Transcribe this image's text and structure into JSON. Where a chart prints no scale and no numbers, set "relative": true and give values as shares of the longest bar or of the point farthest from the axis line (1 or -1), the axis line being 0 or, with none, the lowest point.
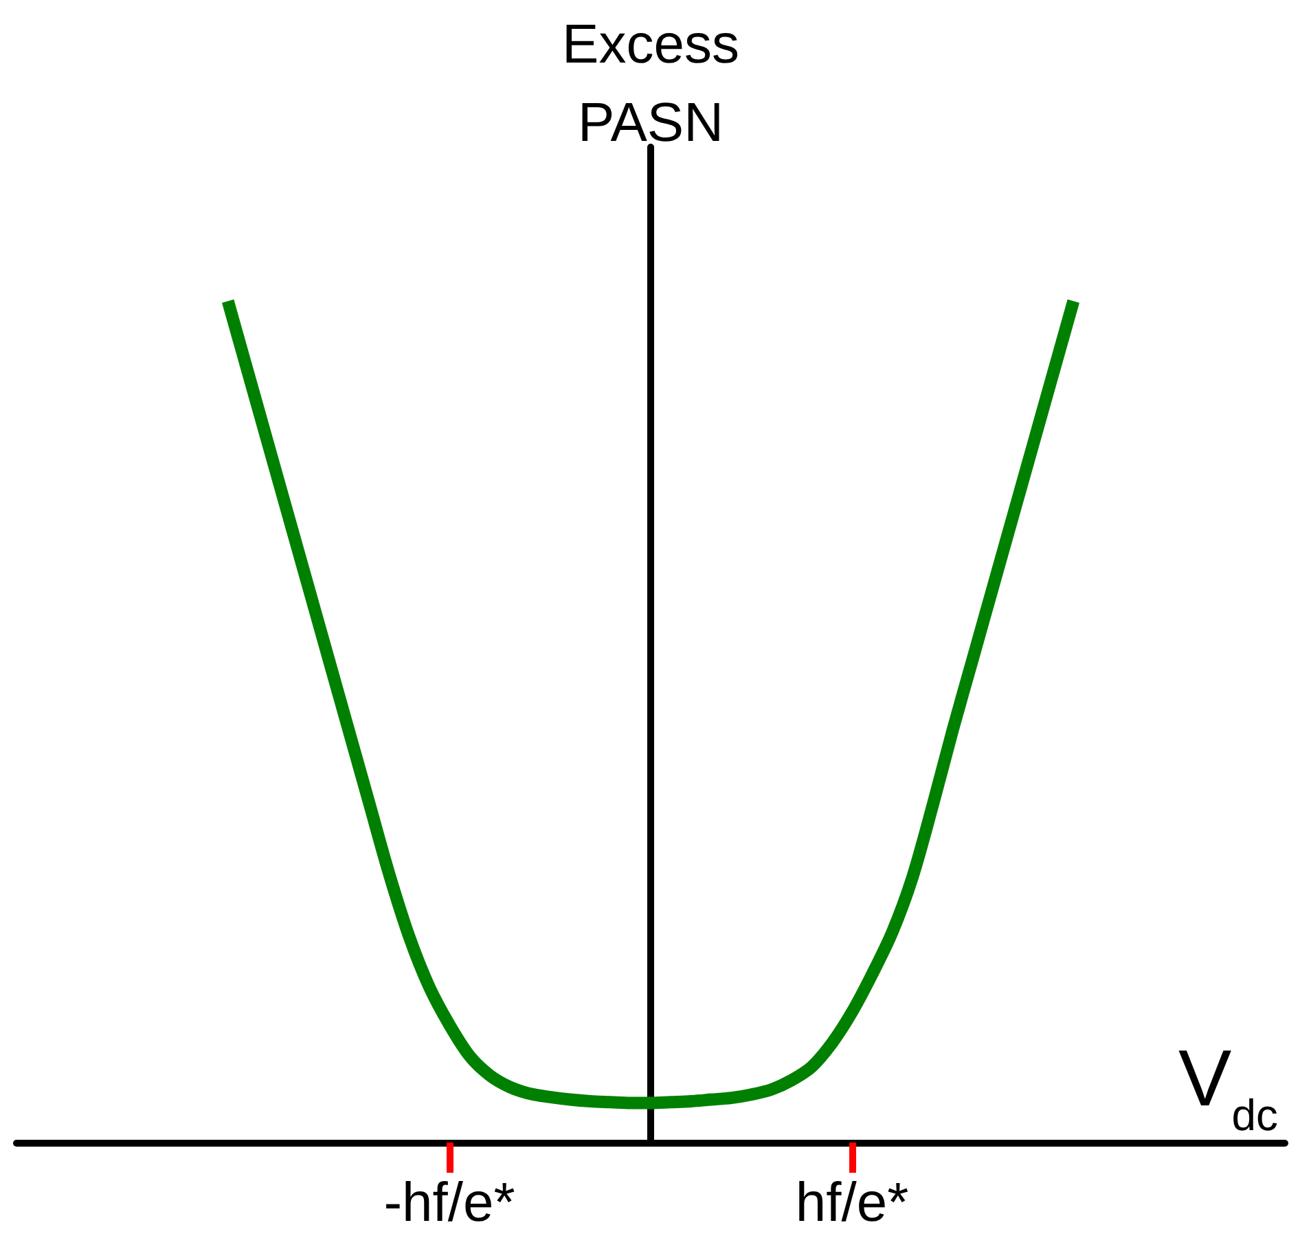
{
  "chart_data": {
    "type": "line",
    "relative": true,
    "xlabel": "V$_{dc}$",
    "ylabel": "Excess PASN",
    "categories": [
      null,
      null,
      null,
      null,
      null,
      null,
      null,
      null,
      null,
      null,
      null,
      null,
      null,
      null,
      null,
      null,
      null,
      null,
      null,
      null,
      null,
      "-hf/e*",
      null,
      null,
      null,
      null,
      null,
      null,
      null,
      null,
      null,
      null,
      null,
      null,
      null,
      null,
      null,
      null,
      null,
      null,
      null,
      "hf/e*",
      null,
      null,
      null,
      null,
      null,
      null,
      null,
      null,
      null,
      null,
      null,
      null,
      null,
      null,
      null,
      null,
      null,
      null,
      null,
      null,
      null
    ],
    "values": [
      null,
      null,
      null,
      null,
      null,
      null,
      null,
      null,
      null,
      null,
      1,
      0.915,
      0.83,
      0.745,
      0.66,
      0.575,
      0.49,
      0.405,
      0.32,
      0.245,
      0.185,
      0.14,
      0.103,
      0.08,
      0.066,
      0.058,
      0.054,
      0.051,
      0.049,
      0.048,
      0.047,
      0.047,
      0.048,
      0.049,
      0.051,
      0.053,
      0.057,
      0.063,
      0.074,
      0.09,
      0.118,
      0.155,
      0.2,
      0.25,
      0.315,
      0.4,
      0.49,
      0.575,
      0.66,
      0.745,
      0.83,
      0.915,
      1,
      null,
      null,
      null,
      null,
      null,
      null,
      null,
      null,
      null,
      null
    ],
    "color": "#008000",
    "tick_labels": "x"
  }
}
